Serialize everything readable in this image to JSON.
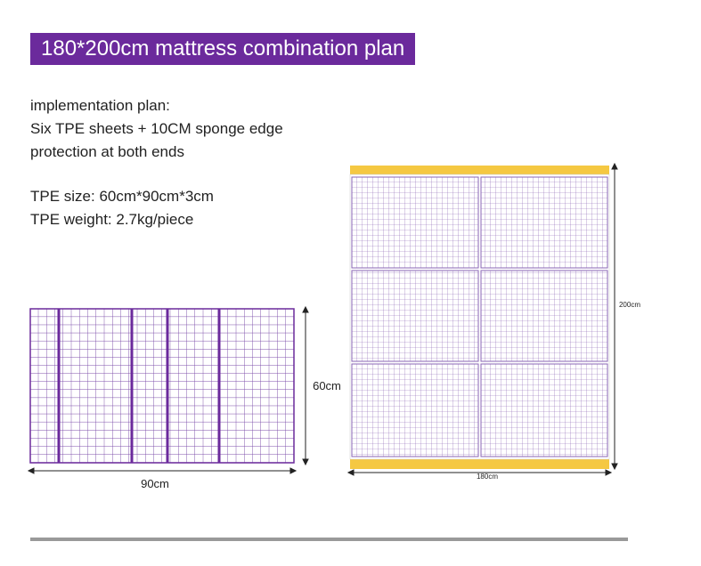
{
  "header": {
    "title": "180*200cm mattress combination plan"
  },
  "description": {
    "lines": [
      "implementation plan:",
      "Six TPE sheets + 10CM sponge edge",
      "protection at both ends"
    ],
    "specs": [
      "TPE size: 60cm*90cm*3cm",
      "TPE weight: 2.7kg/piece"
    ]
  },
  "single_sheet": {
    "height_label": "60cm",
    "width_label": "90cm"
  },
  "mattress": {
    "height_label": "200cm",
    "width_label": "180cm"
  }
}
